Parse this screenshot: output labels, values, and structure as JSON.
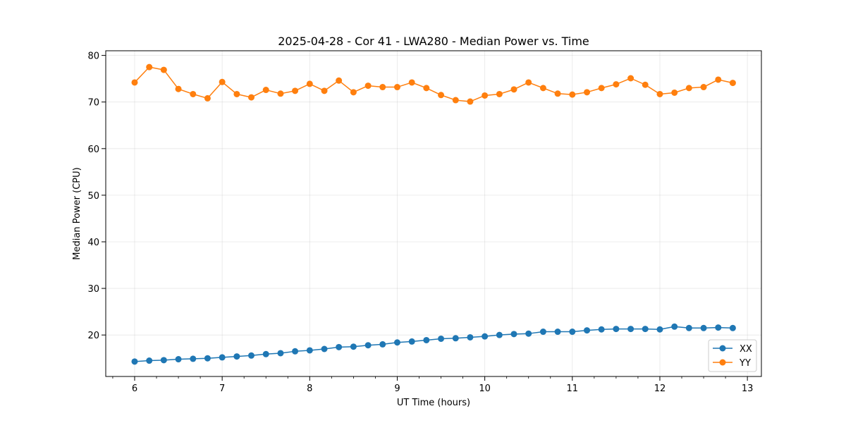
{
  "chart_data": {
    "type": "line",
    "title": "2025-04-28 - Cor 41 - LWA280 - Median Power vs. Time",
    "xlabel": "UT Time (hours)",
    "ylabel": "Median Power (CPU)",
    "xlim": [
      5.67,
      13.16
    ],
    "ylim": [
      11.1,
      81.0
    ],
    "xticks": [
      6,
      7,
      8,
      9,
      10,
      11,
      12,
      13
    ],
    "yticks": [
      20,
      30,
      40,
      50,
      60,
      70,
      80
    ],
    "grid": true,
    "legend_position": "lower-right",
    "x": [
      6.0,
      6.167,
      6.333,
      6.5,
      6.667,
      6.833,
      7.0,
      7.167,
      7.333,
      7.5,
      7.667,
      7.833,
      8.0,
      8.167,
      8.333,
      8.5,
      8.667,
      8.833,
      9.0,
      9.167,
      9.333,
      9.5,
      9.667,
      9.833,
      10.0,
      10.167,
      10.333,
      10.5,
      10.667,
      10.833,
      11.0,
      11.167,
      11.333,
      11.5,
      11.667,
      11.833,
      12.0,
      12.167,
      12.333,
      12.5,
      12.667,
      12.833
    ],
    "series": [
      {
        "name": "XX",
        "color": "#1f77b4",
        "values": [
          14.3,
          14.5,
          14.6,
          14.8,
          14.9,
          15.0,
          15.2,
          15.4,
          15.6,
          15.9,
          16.1,
          16.5,
          16.7,
          17.0,
          17.4,
          17.5,
          17.8,
          18.0,
          18.4,
          18.6,
          18.9,
          19.2,
          19.3,
          19.5,
          19.7,
          20.0,
          20.2,
          20.3,
          20.7,
          20.7,
          20.7,
          21.0,
          21.2,
          21.3,
          21.3,
          21.3,
          21.2,
          21.8,
          21.5,
          21.5,
          21.6,
          21.5
        ]
      },
      {
        "name": "YY",
        "color": "#ff7f0e",
        "values": [
          74.2,
          77.5,
          76.9,
          72.8,
          71.7,
          70.8,
          74.3,
          71.7,
          71.0,
          72.6,
          71.8,
          72.4,
          73.9,
          72.4,
          74.6,
          72.1,
          73.5,
          73.2,
          73.2,
          74.2,
          73.0,
          71.5,
          70.4,
          70.1,
          71.4,
          71.7,
          72.7,
          74.2,
          73.0,
          71.8,
          71.6,
          72.1,
          73.0,
          73.8,
          75.1,
          73.7,
          71.7,
          72.0,
          73.0,
          73.2,
          74.8,
          74.1
        ]
      }
    ]
  }
}
